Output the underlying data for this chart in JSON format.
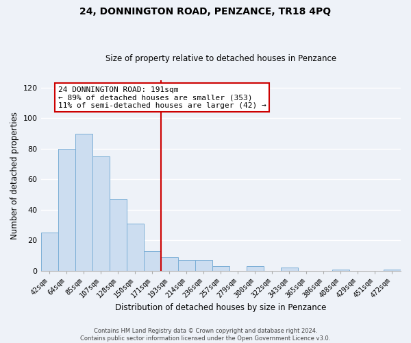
{
  "title": "24, DONNINGTON ROAD, PENZANCE, TR18 4PQ",
  "subtitle": "Size of property relative to detached houses in Penzance",
  "xlabel": "Distribution of detached houses by size in Penzance",
  "ylabel": "Number of detached properties",
  "bar_labels": [
    "42sqm",
    "64sqm",
    "85sqm",
    "107sqm",
    "128sqm",
    "150sqm",
    "171sqm",
    "193sqm",
    "214sqm",
    "236sqm",
    "257sqm",
    "279sqm",
    "300sqm",
    "322sqm",
    "343sqm",
    "365sqm",
    "386sqm",
    "408sqm",
    "429sqm",
    "451sqm",
    "472sqm"
  ],
  "bar_heights": [
    25,
    80,
    90,
    75,
    47,
    31,
    13,
    9,
    7,
    7,
    3,
    0,
    3,
    0,
    2,
    0,
    0,
    1,
    0,
    0,
    1
  ],
  "bar_color": "#ccddf0",
  "bar_edge_color": "#7aaed6",
  "vline_color": "#cc0000",
  "ylim": [
    0,
    125
  ],
  "yticks": [
    0,
    20,
    40,
    60,
    80,
    100,
    120
  ],
  "annotation_line1": "24 DONNINGTON ROAD: 191sqm",
  "annotation_line2": "← 89% of detached houses are smaller (353)",
  "annotation_line3": "11% of semi-detached houses are larger (42) →",
  "annotation_box_color": "#ffffff",
  "annotation_box_edge": "#cc0000",
  "footer_line1": "Contains HM Land Registry data © Crown copyright and database right 2024.",
  "footer_line2": "Contains public sector information licensed under the Open Government Licence v3.0.",
  "background_color": "#eef2f8"
}
